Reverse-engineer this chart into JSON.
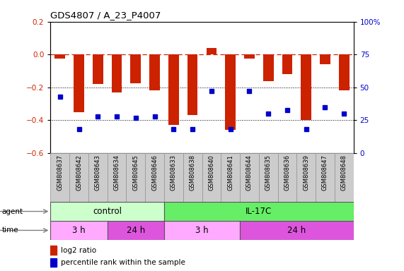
{
  "title": "GDS4807 / A_23_P4007",
  "samples": [
    "GSM808637",
    "GSM808642",
    "GSM808643",
    "GSM808634",
    "GSM808645",
    "GSM808646",
    "GSM808633",
    "GSM808638",
    "GSM808640",
    "GSM808641",
    "GSM808644",
    "GSM808635",
    "GSM808636",
    "GSM808639",
    "GSM808647",
    "GSM808648"
  ],
  "log2_ratio": [
    -0.025,
    -0.35,
    -0.18,
    -0.23,
    -0.175,
    -0.22,
    -0.43,
    -0.37,
    0.04,
    -0.46,
    -0.025,
    -0.16,
    -0.12,
    -0.4,
    -0.06,
    -0.22
  ],
  "percentile": [
    43,
    18,
    28,
    28,
    27,
    28,
    18,
    18,
    47,
    18,
    47,
    30,
    33,
    18,
    35,
    30
  ],
  "bar_color": "#cc2200",
  "dot_color": "#0000cc",
  "agent_groups": [
    {
      "label": "control",
      "start": 0,
      "end": 6,
      "color": "#ccffcc"
    },
    {
      "label": "IL-17C",
      "start": 6,
      "end": 16,
      "color": "#66ee66"
    }
  ],
  "time_groups": [
    {
      "label": "3 h",
      "start": 0,
      "end": 3,
      "color": "#ffaaff"
    },
    {
      "label": "24 h",
      "start": 3,
      "end": 6,
      "color": "#dd55dd"
    },
    {
      "label": "3 h",
      "start": 6,
      "end": 10,
      "color": "#ffaaff"
    },
    {
      "label": "24 h",
      "start": 10,
      "end": 16,
      "color": "#dd55dd"
    }
  ],
  "ylim_left": [
    -0.6,
    0.2
  ],
  "ylim_right": [
    0,
    100
  ],
  "yticks_left": [
    0.2,
    0.0,
    -0.2,
    -0.4,
    -0.6
  ],
  "yticks_right": [
    100,
    75,
    50,
    25,
    0
  ],
  "background_color": "#ffffff"
}
